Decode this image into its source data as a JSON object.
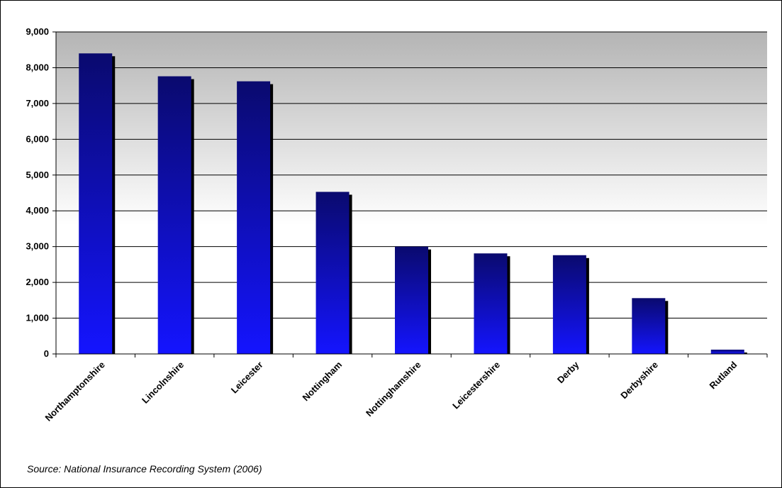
{
  "chart_data": {
    "type": "bar",
    "title": "",
    "xlabel": "",
    "ylabel": "",
    "categories": [
      "Northamptonshire",
      "Lincolnshire",
      "Leicester",
      "Nottingham",
      "Nottinghamshire",
      "Leicestershire",
      "Derby",
      "Derbyshire",
      "Rutland"
    ],
    "values": [
      8400,
      7760,
      7620,
      4530,
      3000,
      2810,
      2760,
      1560,
      120
    ],
    "ylim": [
      0,
      9000
    ],
    "yticks": [
      0,
      1000,
      2000,
      3000,
      4000,
      5000,
      6000,
      7000,
      8000,
      9000
    ],
    "ytick_labels": [
      "0",
      "1,000",
      "2,000",
      "3,000",
      "4,000",
      "5,000",
      "6,000",
      "7,000",
      "8,000",
      "9,000"
    ],
    "grid": true,
    "legend": "none",
    "colors": {
      "bar_top": "#0a0a6e",
      "bar_bottom": "#1414ff",
      "bar_shadow": "#000000",
      "plot_bg_top": "#b4b4b4",
      "plot_bg_bottom": "#ffffff"
    }
  },
  "source_note": "Source: National Insurance Recording System (2006)"
}
